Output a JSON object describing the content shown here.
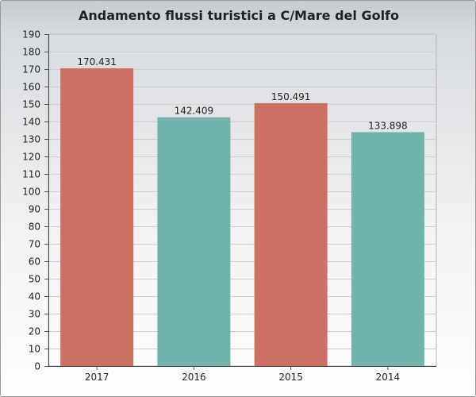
{
  "chart_data": {
    "type": "bar",
    "title": "Andamento flussi turistici a C/Mare del Golfo",
    "categories": [
      "2017",
      "2016",
      "2015",
      "2014"
    ],
    "values": [
      170.431,
      142.409,
      150.491,
      133.898
    ],
    "value_labels": [
      "170.431",
      "142.409",
      "150.491",
      "133.898"
    ],
    "bar_colors": [
      "#cc7064",
      "#71b3a9",
      "#cc7064",
      "#71b3a9"
    ],
    "ylim": [
      0,
      190
    ],
    "yticks": [
      "0",
      "10",
      "20",
      "30",
      "40",
      "50",
      "60",
      "70",
      "80",
      "90",
      "100",
      "110",
      "120",
      "130",
      "140",
      "150",
      "160",
      "170",
      "180",
      "190"
    ],
    "grid": true,
    "legend": "none"
  }
}
